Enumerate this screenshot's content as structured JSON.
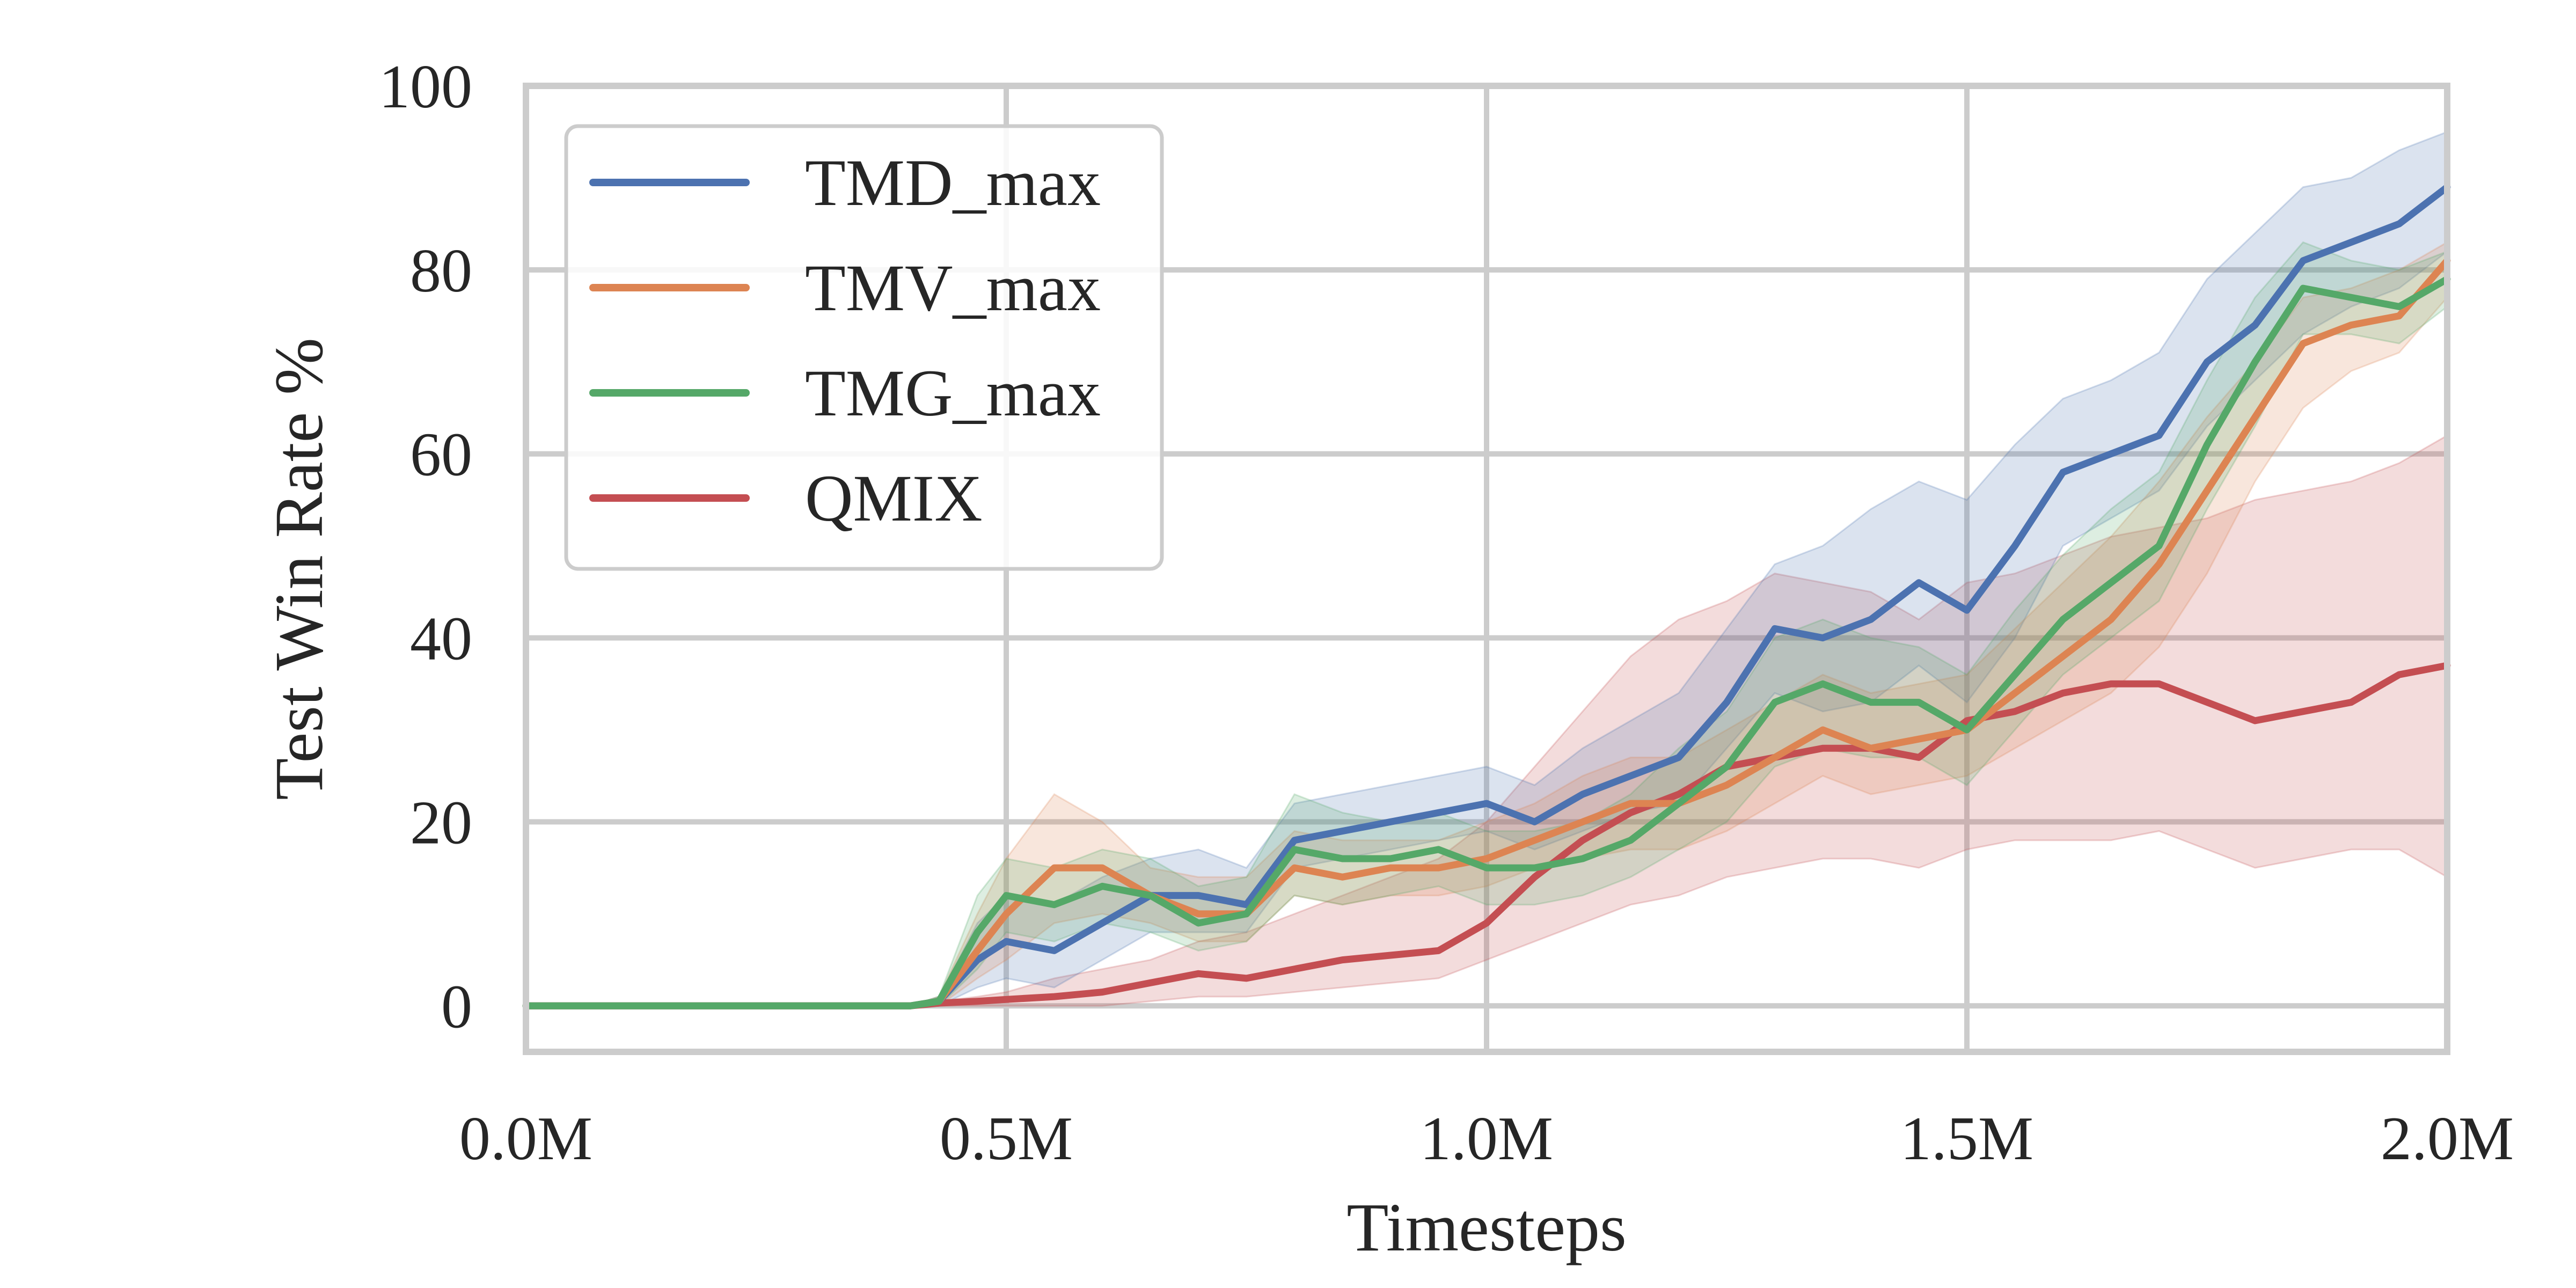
{
  "chart_data": {
    "type": "line",
    "xlabel": "Timesteps",
    "ylabel": "Test Win Rate %",
    "xlim": [
      0,
      2000000
    ],
    "ylim": [
      -5,
      100
    ],
    "xticks": [
      0,
      500000,
      1000000,
      1500000,
      2000000
    ],
    "xtick_labels": [
      "0.0M",
      "0.5M",
      "1.0M",
      "1.5M",
      "2.0M"
    ],
    "yticks": [
      0,
      20,
      40,
      60,
      80,
      100
    ],
    "ytick_labels": [
      "0",
      "20",
      "40",
      "60",
      "80",
      "100"
    ],
    "grid": true,
    "legend_position": "top-left",
    "x": [
      0,
      100000,
      200000,
      300000,
      400000,
      430000,
      470000,
      500000,
      550000,
      600000,
      650000,
      700000,
      750000,
      800000,
      850000,
      900000,
      950000,
      1000000,
      1050000,
      1100000,
      1150000,
      1200000,
      1250000,
      1300000,
      1350000,
      1400000,
      1450000,
      1500000,
      1550000,
      1600000,
      1650000,
      1700000,
      1750000,
      1800000,
      1850000,
      1900000,
      1950000,
      2000000
    ],
    "series": [
      {
        "name": "TMD_max",
        "color": "#4c72b0",
        "values": [
          0,
          0,
          0,
          0,
          0,
          0.5,
          5,
          7,
          6,
          9,
          12,
          12,
          11,
          18,
          19,
          20,
          21,
          22,
          20,
          23,
          25,
          27,
          33,
          41,
          40,
          42,
          46,
          43,
          50,
          58,
          60,
          62,
          70,
          74,
          81,
          83,
          85,
          89
        ],
        "upper": [
          0,
          0,
          0,
          0,
          0,
          1,
          9,
          12,
          11,
          14,
          16,
          17,
          15,
          22,
          23,
          24,
          25,
          26,
          24,
          28,
          31,
          34,
          41,
          48,
          50,
          54,
          57,
          55,
          61,
          66,
          68,
          71,
          79,
          84,
          89,
          90,
          93,
          95
        ],
        "lower": [
          0,
          0,
          0,
          0,
          0,
          0,
          2,
          3,
          2,
          5,
          8,
          8,
          8,
          15,
          16,
          17,
          18,
          19,
          17,
          19,
          21,
          22,
          28,
          34,
          32,
          33,
          37,
          33,
          40,
          50,
          53,
          56,
          63,
          68,
          73,
          76,
          78,
          82
        ]
      },
      {
        "name": "TMV_max",
        "color": "#dd8452",
        "values": [
          0,
          0,
          0,
          0,
          0,
          0.5,
          6,
          10,
          15,
          15,
          12,
          10,
          10,
          15,
          14,
          15,
          15,
          16,
          18,
          20,
          22,
          22,
          24,
          27,
          30,
          28,
          29,
          30,
          34,
          38,
          42,
          48,
          56,
          64,
          72,
          74,
          75,
          81
        ],
        "upper": [
          0,
          0,
          0,
          0,
          0,
          1,
          10,
          16,
          23,
          20,
          15,
          14,
          14,
          19,
          18,
          18,
          18,
          20,
          22,
          25,
          27,
          27,
          30,
          33,
          36,
          34,
          35,
          36,
          41,
          46,
          51,
          57,
          64,
          70,
          77,
          78,
          80,
          83
        ],
        "lower": [
          0,
          0,
          0,
          0,
          0,
          0,
          3,
          5,
          9,
          10,
          9,
          7,
          7,
          12,
          11,
          12,
          12,
          13,
          15,
          16,
          17,
          17,
          19,
          22,
          25,
          23,
          24,
          25,
          28,
          31,
          34,
          39,
          47,
          57,
          65,
          69,
          71,
          77
        ]
      },
      {
        "name": "TMG_max",
        "color": "#55a868",
        "values": [
          0,
          0,
          0,
          0,
          0,
          0.5,
          8,
          12,
          11,
          13,
          12,
          9,
          10,
          17,
          16,
          16,
          17,
          15,
          15,
          16,
          18,
          22,
          26,
          33,
          35,
          33,
          33,
          30,
          36,
          42,
          46,
          50,
          61,
          70,
          78,
          77,
          76,
          79
        ],
        "upper": [
          0,
          0,
          0,
          0,
          0,
          1,
          12,
          16,
          15,
          17,
          16,
          13,
          14,
          23,
          21,
          20,
          21,
          19,
          19,
          20,
          23,
          28,
          32,
          40,
          42,
          40,
          39,
          36,
          43,
          49,
          54,
          58,
          68,
          77,
          83,
          81,
          80,
          82
        ],
        "lower": [
          0,
          0,
          0,
          0,
          0,
          0,
          4,
          8,
          7,
          9,
          8,
          6,
          7,
          12,
          11,
          12,
          13,
          11,
          11,
          12,
          14,
          17,
          20,
          26,
          28,
          27,
          27,
          24,
          30,
          36,
          40,
          44,
          54,
          63,
          73,
          73,
          72,
          76
        ]
      },
      {
        "name": "QMIX",
        "color": "#c44e52",
        "values": [
          0,
          0,
          0,
          0,
          0,
          0.3,
          0.5,
          0.7,
          1,
          1.5,
          2.5,
          3.5,
          3,
          4,
          5,
          5.5,
          6,
          9,
          14,
          18,
          21,
          23,
          26,
          27,
          28,
          28,
          27,
          31,
          32,
          34,
          35,
          35,
          33,
          31,
          32,
          33,
          36,
          37
        ],
        "upper": [
          0,
          0,
          0,
          0,
          0,
          0.5,
          1,
          1.5,
          3,
          4,
          5,
          7,
          8,
          10,
          12,
          14,
          16,
          20,
          26,
          32,
          38,
          42,
          44,
          47,
          46,
          45,
          42,
          46,
          47,
          49,
          51,
          52,
          53,
          55,
          56,
          57,
          59,
          62
        ],
        "lower": [
          0,
          0,
          0,
          0,
          0,
          0,
          0,
          0,
          0,
          0,
          0.5,
          1,
          1,
          1.5,
          2,
          2.5,
          3,
          5,
          7,
          9,
          11,
          12,
          14,
          15,
          16,
          16,
          15,
          17,
          18,
          18,
          18,
          19,
          17,
          15,
          16,
          17,
          17,
          14
        ]
      }
    ]
  }
}
